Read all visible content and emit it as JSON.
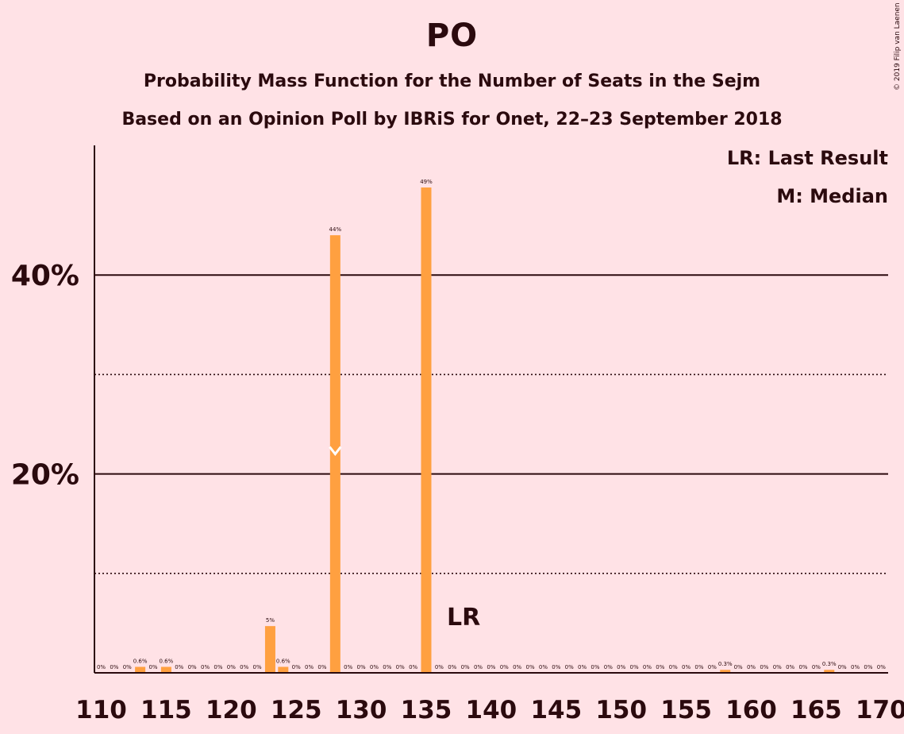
{
  "title": "PO",
  "subtitle_1": "Probability Mass Function for the Number of Seats in the Sejm",
  "subtitle_2": "Based on an Opinion Poll by IBRiS for Onet, 22–23 September 2018",
  "copyright": "© 2019 Filip van Laenen",
  "legend": {
    "last_result": "LR: Last Result",
    "median": "M: Median"
  },
  "colors": {
    "background": "#FFE2E6",
    "bar": "#FFA040",
    "text": "#2B0A0E"
  },
  "chart_data": {
    "type": "bar",
    "x": [
      110,
      111,
      112,
      113,
      114,
      115,
      116,
      117,
      118,
      119,
      120,
      121,
      122,
      123,
      124,
      125,
      126,
      127,
      128,
      129,
      130,
      131,
      132,
      133,
      134,
      135,
      136,
      137,
      138,
      139,
      140,
      141,
      142,
      143,
      144,
      145,
      146,
      147,
      148,
      149,
      150,
      151,
      152,
      153,
      154,
      155,
      156,
      157,
      158,
      159,
      160,
      161,
      162,
      163,
      164,
      165,
      166,
      167,
      168,
      169,
      170
    ],
    "values": [
      0,
      0,
      0,
      0.6,
      0,
      0.6,
      0,
      0,
      0,
      0,
      0,
      0,
      0,
      4.7,
      0.6,
      0,
      0,
      0,
      44,
      0,
      0,
      0,
      0,
      0,
      0,
      48.8,
      0,
      0,
      0,
      0,
      0,
      0,
      0,
      0,
      0,
      0,
      0,
      0,
      0,
      0,
      0,
      0,
      0,
      0,
      0,
      0,
      0,
      0,
      0.3,
      0,
      0,
      0,
      0,
      0,
      0,
      0,
      0.3,
      0,
      0,
      0,
      0
    ],
    "value_labels": [
      "0%",
      "0%",
      "0%",
      "0.6%",
      "0%",
      "0.6%",
      "0%",
      "0%",
      "0%",
      "0%",
      "0%",
      "0%",
      "0%",
      "5%",
      "0.6%",
      "0%",
      "0%",
      "0%",
      "44%",
      "0%",
      "0%",
      "0%",
      "0%",
      "0%",
      "0%",
      "49%",
      "0%",
      "0%",
      "0%",
      "0%",
      "0%",
      "0%",
      "0%",
      "0%",
      "0%",
      "0%",
      "0%",
      "0%",
      "0%",
      "0%",
      "0%",
      "0%",
      "0%",
      "0%",
      "0%",
      "0%",
      "0%",
      "0%",
      "0.3%",
      "0%",
      "0%",
      "0%",
      "0%",
      "0%",
      "0%",
      "0%",
      "0.3%",
      "0%",
      "0%",
      "0%",
      "0%"
    ],
    "x_ticks": [
      110,
      115,
      120,
      125,
      130,
      135,
      140,
      145,
      150,
      155,
      160,
      165,
      170
    ],
    "x_tick_labels": [
      "110",
      "115",
      "120",
      "125",
      "130",
      "135",
      "140",
      "145",
      "150",
      "155",
      "160",
      "165",
      "170"
    ],
    "y_ticks": [
      20,
      40
    ],
    "y_tick_labels": [
      "20%",
      "40%"
    ],
    "y_dotted_gridlines": [
      10,
      30
    ],
    "ylim": [
      0,
      53
    ],
    "xlim": [
      109.5,
      170.5
    ],
    "median": 128,
    "last_result": 138,
    "last_result_label": "LR",
    "median_marker": "M"
  }
}
